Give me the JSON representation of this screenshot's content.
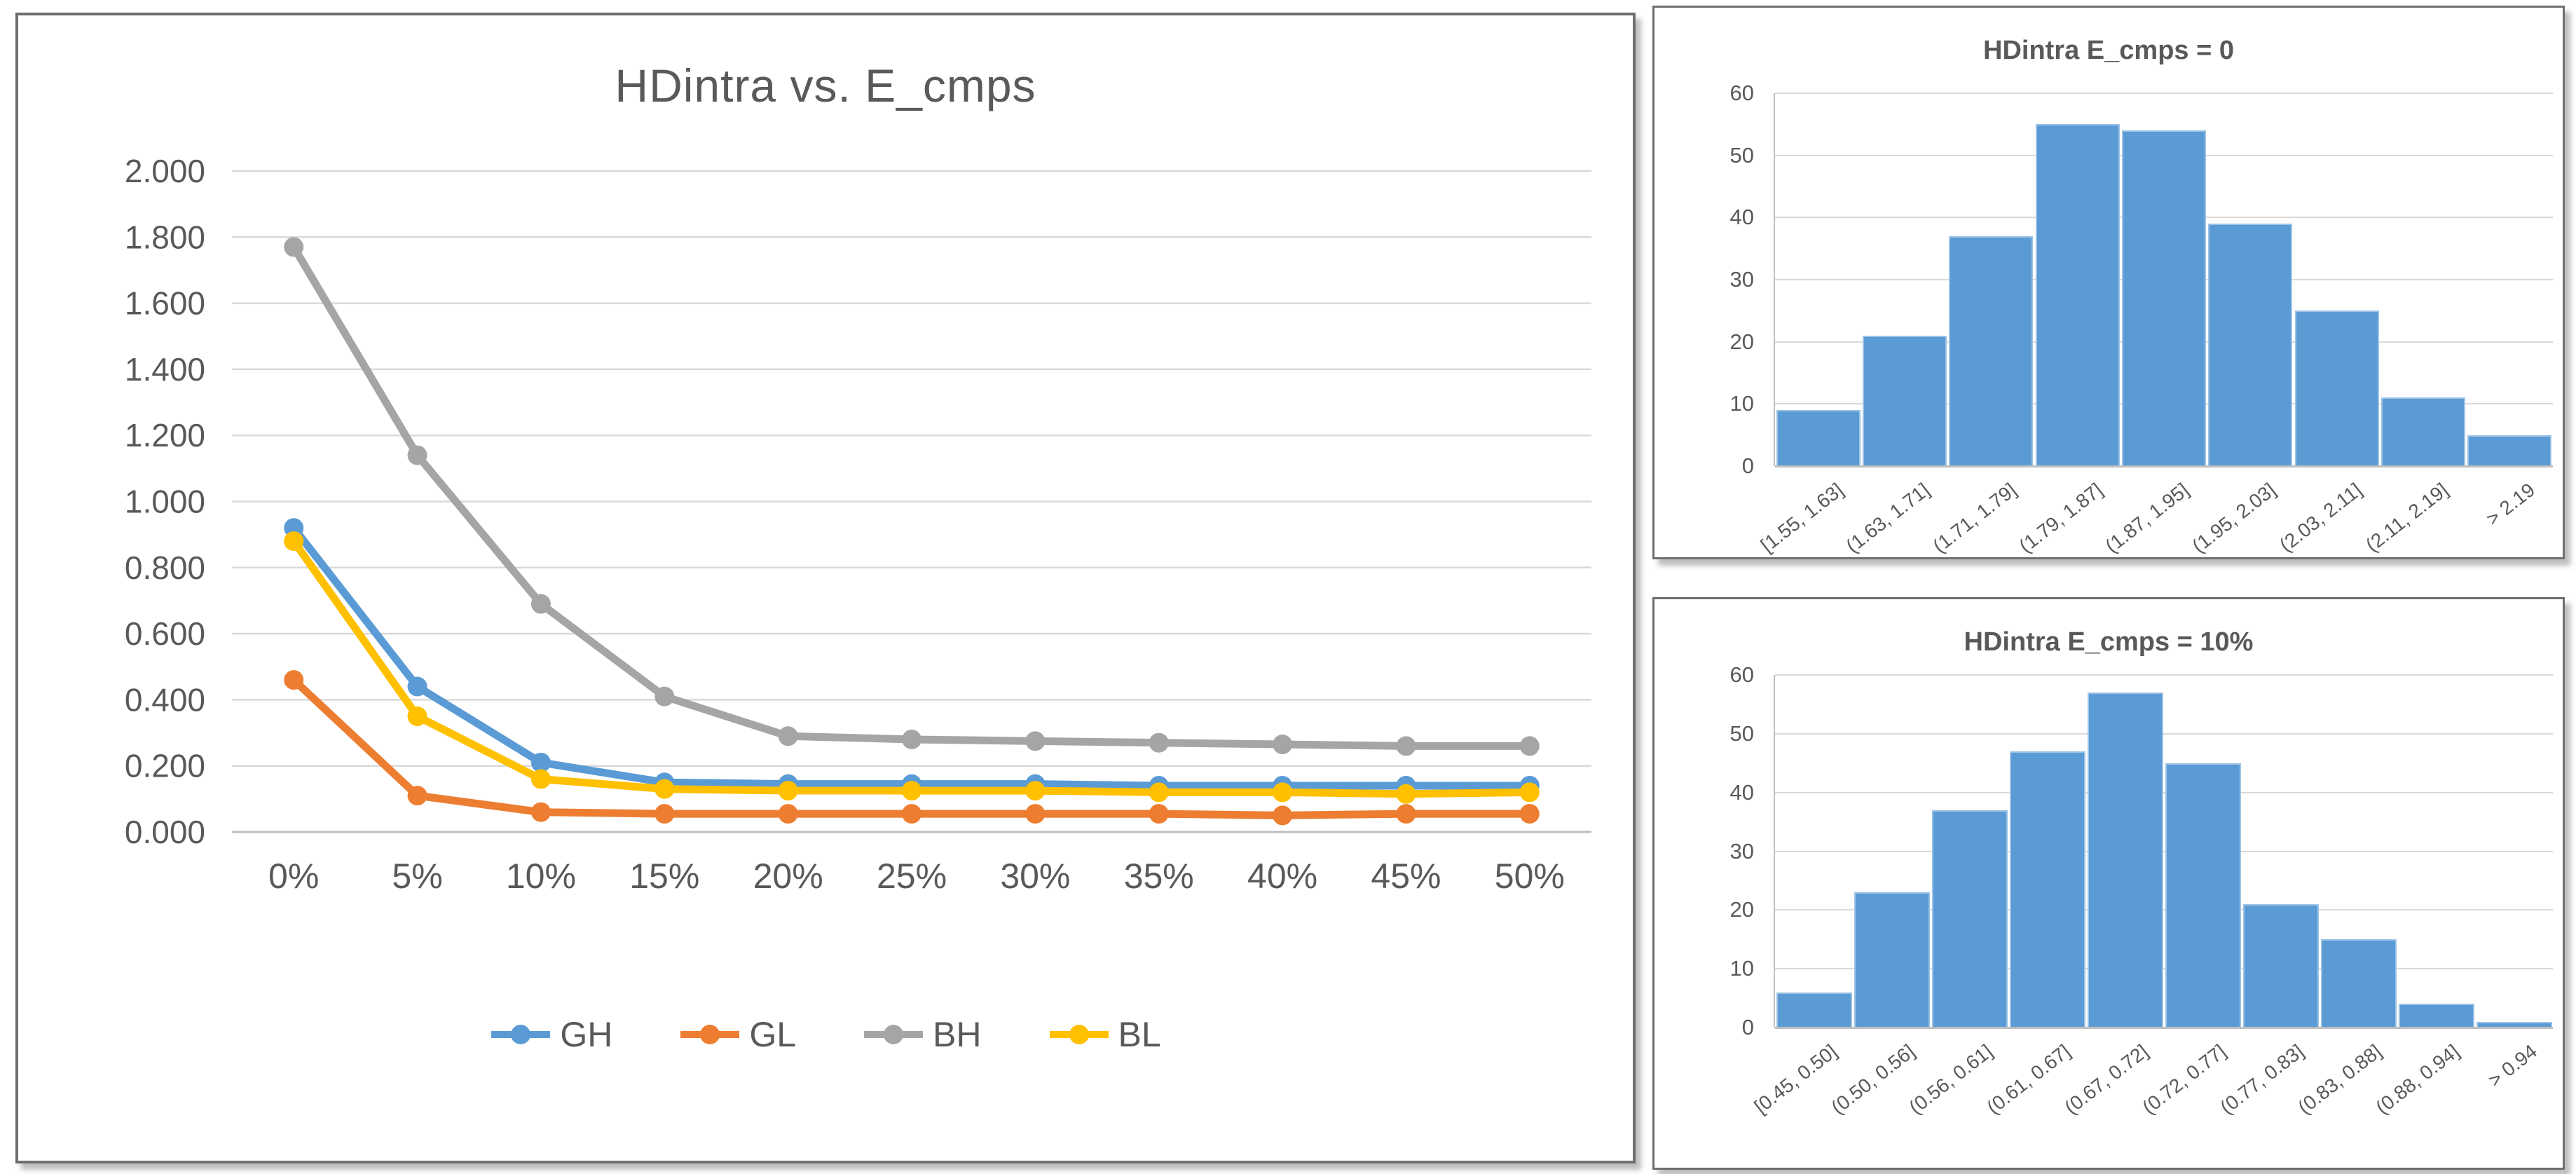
{
  "window": {
    "background": "#FFFFFF"
  },
  "colors": {
    "card_border": "#6E6E6E",
    "gridline": "#D9D9D9",
    "axis_line": "#BFBFBF",
    "label_text": "#595959",
    "hist_bar_fill": "#5B9BD5",
    "hist_bar_edge": "#9DC3E6",
    "series_blue": "#5B9BD5",
    "series_orange": "#ED7D31",
    "series_gray": "#A5A5A5",
    "series_yellow": "#FFC000"
  },
  "chart_data": [
    {
      "id": "hdintra_vs_ecmps",
      "type": "line",
      "title": "HDintra vs. E_cmps",
      "xlabel": "",
      "ylabel": "",
      "grid": true,
      "legend_position": "bottom",
      "ylim": [
        0,
        2
      ],
      "y_tick_labels": [
        "2.000",
        "1.800",
        "1.600",
        "1.400",
        "1.200",
        "1.000",
        "0.800",
        "0.600",
        "0.400",
        "0.200",
        "0.000"
      ],
      "categories": [
        "0%",
        "5%",
        "10%",
        "15%",
        "20%",
        "25%",
        "30%",
        "35%",
        "40%",
        "45%",
        "50%"
      ],
      "series": [
        {
          "name": "GH",
          "color": "#5B9BD5",
          "values": [
            0.92,
            0.44,
            0.21,
            0.15,
            0.145,
            0.145,
            0.145,
            0.14,
            0.14,
            0.14,
            0.14
          ]
        },
        {
          "name": "GL",
          "color": "#ED7D31",
          "values": [
            0.46,
            0.11,
            0.06,
            0.055,
            0.055,
            0.055,
            0.055,
            0.055,
            0.05,
            0.055,
            0.055
          ]
        },
        {
          "name": "BH",
          "color": "#A5A5A5",
          "values": [
            1.77,
            1.14,
            0.69,
            0.41,
            0.29,
            0.28,
            0.275,
            0.27,
            0.265,
            0.26,
            0.26
          ]
        },
        {
          "name": "BL",
          "color": "#FFC000",
          "values": [
            0.88,
            0.35,
            0.16,
            0.13,
            0.125,
            0.125,
            0.125,
            0.12,
            0.12,
            0.115,
            0.12
          ]
        }
      ]
    },
    {
      "id": "hist_ecmps_0",
      "type": "bar",
      "title": "HDintra E_cmps = 0",
      "grid": true,
      "ylim": [
        0,
        60
      ],
      "y_ticks": [
        0,
        10,
        20,
        30,
        40,
        50,
        60
      ],
      "categories": [
        "[1.55, 1.63]",
        "(1.63, 1.71]",
        "(1.71, 1.79]",
        "(1.79, 1.87]",
        "(1.87, 1.95]",
        "(1.95, 2.03]",
        "(2.03, 2.11]",
        "(2.11, 2.19]",
        "> 2.19"
      ],
      "values": [
        9,
        21,
        37,
        55,
        54,
        39,
        25,
        11,
        5
      ]
    },
    {
      "id": "hist_ecmps_10",
      "type": "bar",
      "title": "HDintra E_cmps = 10%",
      "grid": true,
      "ylim": [
        0,
        60
      ],
      "y_ticks": [
        0,
        10,
        20,
        30,
        40,
        50,
        60
      ],
      "categories": [
        "[0.45, 0.50]",
        "(0.50, 0.56]",
        "(0.56, 0.61]",
        "(0.61, 0.67]",
        "(0.67, 0.72]",
        "(0.72, 0.77]",
        "(0.77, 0.83]",
        "(0.83, 0.88]",
        "(0.88, 0.94]",
        "> 0.94"
      ],
      "values": [
        6,
        23,
        37,
        47,
        57,
        45,
        21,
        15,
        4,
        1
      ]
    }
  ]
}
